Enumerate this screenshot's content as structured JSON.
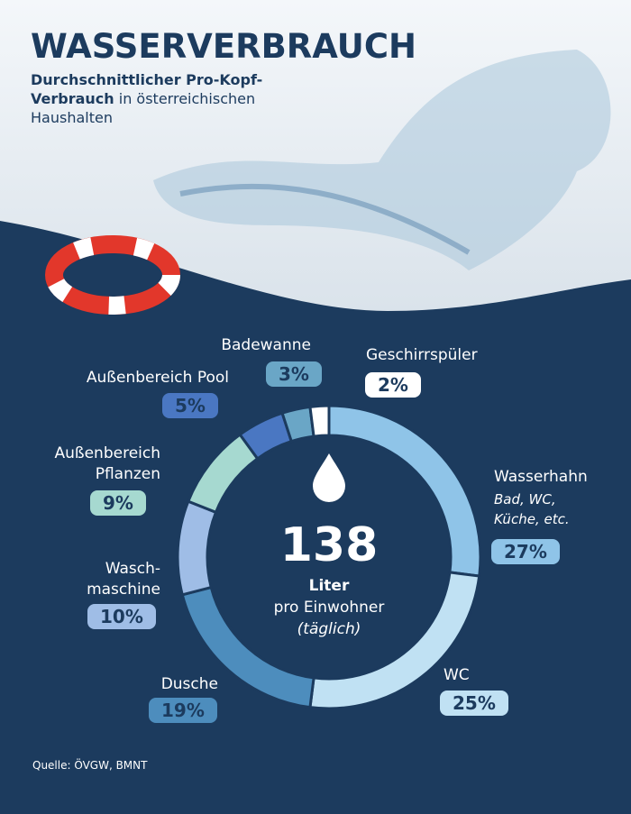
{
  "title": "WASSERVERBRAUCH",
  "subtitle_bold": "Durchschnittlicher Pro-Kopf-Verbrauch",
  "subtitle": "in österreichischen Haushalten",
  "chart_data": {
    "type": "pie",
    "donut": true,
    "categories": [
      "Wasserhahn",
      "WC",
      "Dusche",
      "Wasch-\nmaschine",
      "Außenbereich\nPflanzen",
      "Außenbereich Pool",
      "Badewanne",
      "Geschirrspüler"
    ],
    "category_notes": [
      "Bad, WC,\nKüche, etc.",
      null,
      null,
      null,
      null,
      null,
      null,
      null
    ],
    "values": [
      27,
      25,
      19,
      10,
      9,
      5,
      3,
      2
    ],
    "value_labels": [
      "27%",
      "25%",
      "19%",
      "10%",
      "9%",
      "5%",
      "3%",
      "2%"
    ],
    "colors": [
      "#8fc4e8",
      "#c0e1f3",
      "#4d8dbd",
      "#9fbde6",
      "#a6d9d0",
      "#4a77c2",
      "#6aa6c6",
      "#ffffff"
    ],
    "center_value": 138,
    "center_unit": "Liter",
    "center_text": "pro Einwohner",
    "center_note": "(täglich)"
  },
  "source": "Quelle: ÖVGW, BMNT"
}
